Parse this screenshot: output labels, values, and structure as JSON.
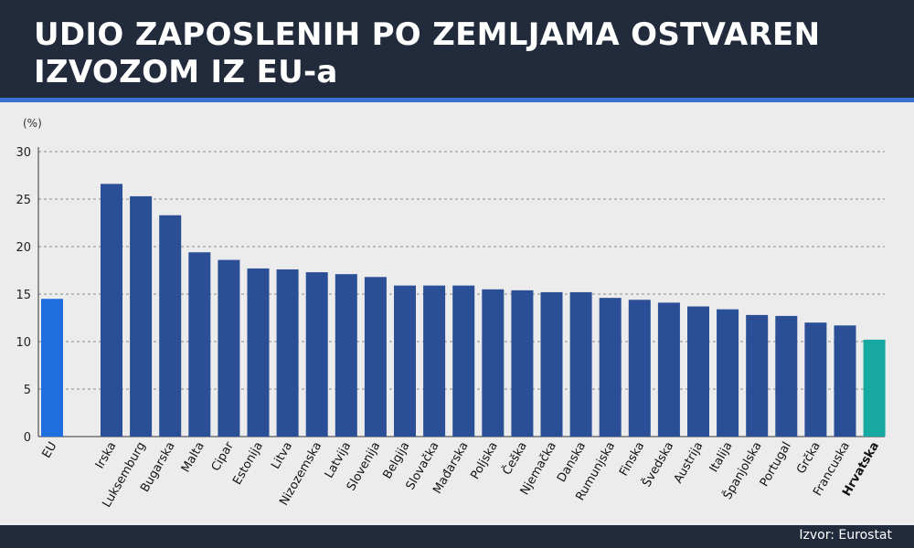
{
  "title": {
    "line1": "UDIO ZAPOSLENIH PO ZEMLJAMA OSTVAREN",
    "line2": "IZVOZOM IZ EU-a"
  },
  "unit_label": "(%)",
  "source": "Izvor: Eurostat",
  "colors": {
    "header_bg": "#222b3c",
    "accent_line": "#3b6fd1",
    "bar_default": "#2a4f96",
    "bar_eu": "#1f6fe0",
    "bar_highlight": "#18a8a2",
    "background": "#ececec"
  },
  "chart_data": {
    "type": "bar",
    "ylabel": "(%)",
    "ylim": [
      0,
      30
    ],
    "yticks": [
      0,
      5,
      10,
      15,
      20,
      25,
      30
    ],
    "grid": true,
    "categories": [
      "EU",
      "Irska",
      "Luksemburg",
      "Bugarska",
      "Malta",
      "Cipar",
      "Estonija",
      "Litva",
      "Nizozemska",
      "Latvija",
      "Slovenija",
      "Belgija",
      "Slovačka",
      "Mađarska",
      "Poljska",
      "Češka",
      "Njemačka",
      "Danska",
      "Rumunjska",
      "Finska",
      "Švedska",
      "Austrija",
      "Italija",
      "Španjolska",
      "Portugal",
      "Grčka",
      "Francuska",
      "Hrvatska"
    ],
    "values": [
      14.5,
      26.6,
      25.3,
      23.3,
      19.4,
      18.6,
      17.7,
      17.6,
      17.3,
      17.1,
      16.8,
      15.9,
      15.9,
      15.9,
      15.5,
      15.4,
      15.2,
      15.2,
      14.6,
      14.4,
      14.1,
      13.7,
      13.4,
      12.8,
      12.7,
      12.0,
      11.7,
      10.2
    ],
    "highlight": {
      "EU": "eu",
      "Hrvatska": "highlight"
    },
    "bold_labels": [
      "Hrvatska"
    ]
  }
}
